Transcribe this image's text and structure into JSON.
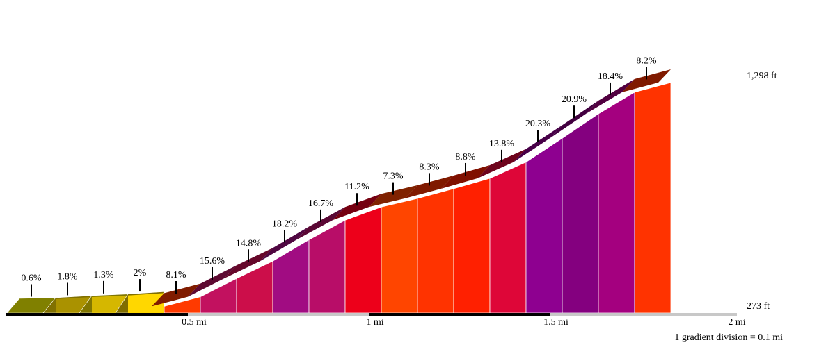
{
  "chart_data": {
    "type": "area",
    "title": "",
    "xlabel": "",
    "ylabel": "",
    "x_unit": "mi",
    "xlim": [
      0,
      2
    ],
    "ylim_ft": [
      273,
      1298
    ],
    "segments": [
      {
        "start_mi": 0.0,
        "end_mi": 0.1,
        "gradient_pct": 0.6,
        "color": "#808000",
        "top": "#807a00",
        "label": "0.6%"
      },
      {
        "start_mi": 0.1,
        "end_mi": 0.2,
        "gradient_pct": 1.8,
        "color": "#807000",
        "top": "#7a6800",
        "label": "1.8%"
      },
      {
        "start_mi": 0.2,
        "end_mi": 0.3,
        "gradient_pct": 1.3,
        "color": "#807600",
        "top": "#7a7000",
        "label": "1.3%"
      },
      {
        "start_mi": 0.3,
        "end_mi": 0.4,
        "gradient_pct": 2.0,
        "color": "#806e00",
        "top": "#7a6600",
        "label": "2%"
      },
      {
        "start_mi": 0.4,
        "end_mi": 0.5,
        "gradient_pct": 8.1,
        "color": "#ff3a00",
        "top": "#801c00",
        "label": "8.1%"
      },
      {
        "start_mi": 0.5,
        "end_mi": 0.6,
        "gradient_pct": 15.6,
        "color": "#c2115f",
        "top": "#5e0a32",
        "label": "15.6%"
      },
      {
        "start_mi": 0.6,
        "end_mi": 0.7,
        "gradient_pct": 14.8,
        "color": "#cc0e4a",
        "top": "#66072a",
        "label": "14.8%"
      },
      {
        "start_mi": 0.7,
        "end_mi": 0.8,
        "gradient_pct": 18.2,
        "color": "#a10c82",
        "top": "#500742",
        "label": "18.2%"
      },
      {
        "start_mi": 0.8,
        "end_mi": 0.9,
        "gradient_pct": 16.7,
        "color": "#b80d68",
        "top": "#5a0734",
        "label": "16.7%"
      },
      {
        "start_mi": 0.9,
        "end_mi": 1.0,
        "gradient_pct": 11.2,
        "color": "#ed001a",
        "top": "#750010",
        "label": "11.2%"
      },
      {
        "start_mi": 1.0,
        "end_mi": 1.1,
        "gradient_pct": 7.3,
        "color": "#ff4500",
        "top": "#802200",
        "label": "7.3%"
      },
      {
        "start_mi": 1.1,
        "end_mi": 1.2,
        "gradient_pct": 8.3,
        "color": "#ff3300",
        "top": "#801a00",
        "label": "8.3%"
      },
      {
        "start_mi": 1.2,
        "end_mi": 1.3,
        "gradient_pct": 8.8,
        "color": "#ff2000",
        "top": "#801000",
        "label": "8.8%"
      },
      {
        "start_mi": 1.3,
        "end_mi": 1.4,
        "gradient_pct": 13.8,
        "color": "#de0638",
        "top": "#6e041c",
        "label": "13.8%"
      },
      {
        "start_mi": 1.4,
        "end_mi": 1.5,
        "gradient_pct": 20.3,
        "color": "#8e0090",
        "top": "#470048",
        "label": "20.3%"
      },
      {
        "start_mi": 1.5,
        "end_mi": 1.6,
        "gradient_pct": 20.9,
        "color": "#84007f",
        "top": "#420040",
        "label": "20.9%"
      },
      {
        "start_mi": 1.6,
        "end_mi": 1.7,
        "gradient_pct": 18.4,
        "color": "#a4007f",
        "top": "#520040",
        "label": "18.4%"
      },
      {
        "start_mi": 1.7,
        "end_mi": 1.8,
        "gradient_pct": 8.2,
        "color": "#ff3300",
        "top": "#801a00",
        "label": "8.2%"
      }
    ],
    "elevation_labels": {
      "start": "273 ft",
      "end": "1,298 ft"
    },
    "x_ticks": [
      {
        "value": 0.5,
        "label": "0.5 mi"
      },
      {
        "value": 1.0,
        "label": "1 mi"
      },
      {
        "value": 1.5,
        "label": "1.5 mi"
      },
      {
        "value": 2.0,
        "label": "2 mi"
      }
    ],
    "footnote": "1 gradient division = 0.1 mi",
    "highlight_color": "#ffd700"
  }
}
